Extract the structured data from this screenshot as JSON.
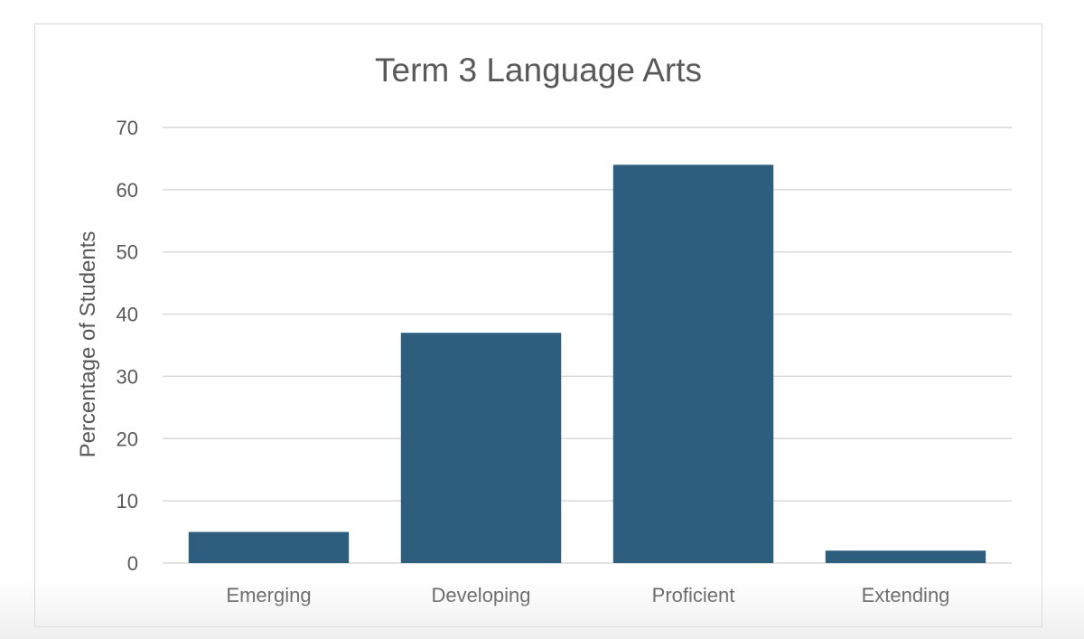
{
  "chart_data": {
    "type": "bar",
    "title": "Term 3 Language Arts",
    "xlabel": "",
    "ylabel": "Percentage of Students",
    "categories": [
      "Emerging",
      "Developing",
      "Proficient",
      "Extending"
    ],
    "values": [
      5,
      37,
      64,
      2
    ],
    "ylim": [
      0,
      70
    ],
    "yticks": [
      "0",
      "10",
      "20",
      "30",
      "40",
      "50",
      "60",
      "70"
    ],
    "grid": true,
    "legend": "none",
    "bar_color": "#2e5e7e"
  }
}
